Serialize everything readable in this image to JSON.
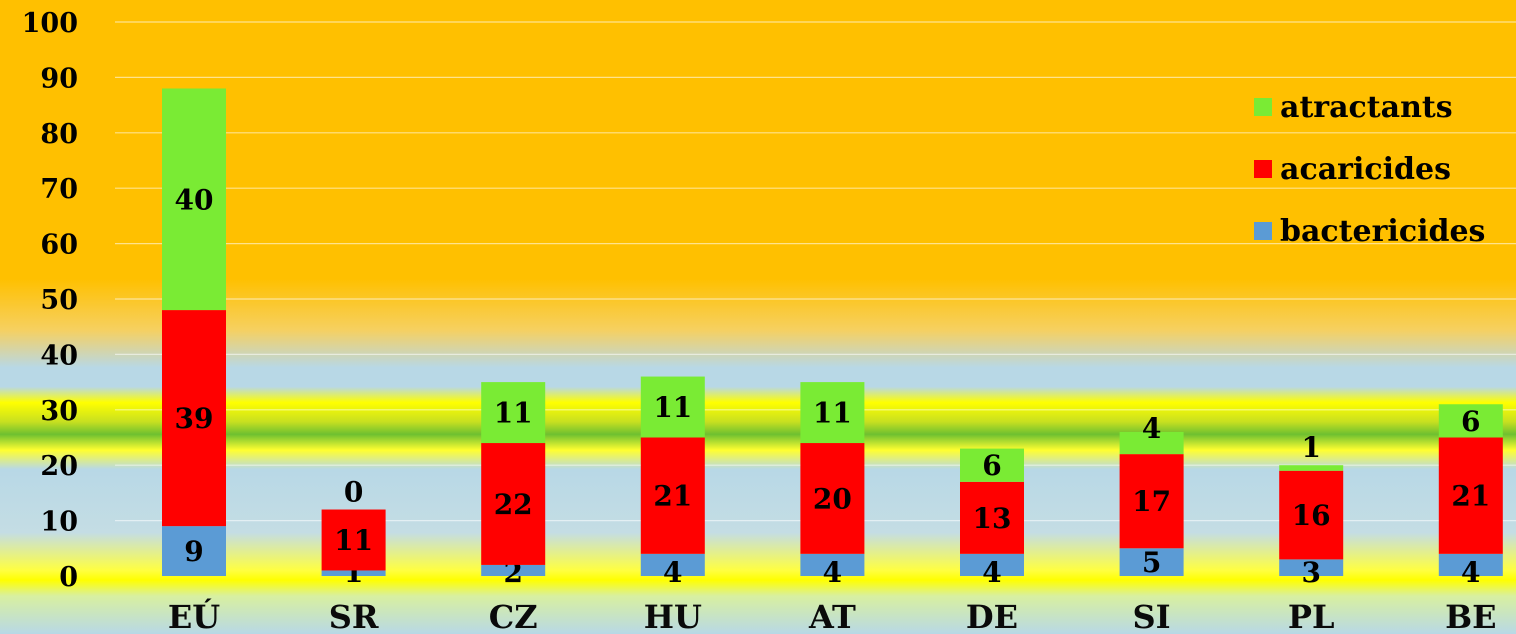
{
  "chart_data": {
    "type": "bar",
    "stacked": true,
    "categories": [
      "EÚ",
      "SR",
      "CZ",
      "HU",
      "AT",
      "DE",
      "SI",
      "PL",
      "BE"
    ],
    "series": [
      {
        "name": "bactericides",
        "color": "#5b9bd5",
        "values": [
          9,
          1,
          2,
          4,
          4,
          4,
          5,
          3,
          4
        ]
      },
      {
        "name": "acaricides",
        "color": "#ff0000",
        "values": [
          39,
          11,
          22,
          21,
          20,
          13,
          17,
          16,
          21
        ]
      },
      {
        "name": "atractants",
        "color": "#7aeb34",
        "values": [
          40,
          0,
          11,
          11,
          11,
          6,
          4,
          1,
          6
        ]
      }
    ],
    "legend_order": [
      "atractants",
      "acaricides",
      "bactericides"
    ],
    "yticks": [
      "0",
      "10",
      "20",
      "30",
      "40",
      "50",
      "60",
      "70",
      "80",
      "90",
      "100"
    ],
    "ylim": [
      0,
      100
    ],
    "legend_position": "right",
    "grid": true,
    "title": "",
    "xlabel": "",
    "ylabel": ""
  }
}
